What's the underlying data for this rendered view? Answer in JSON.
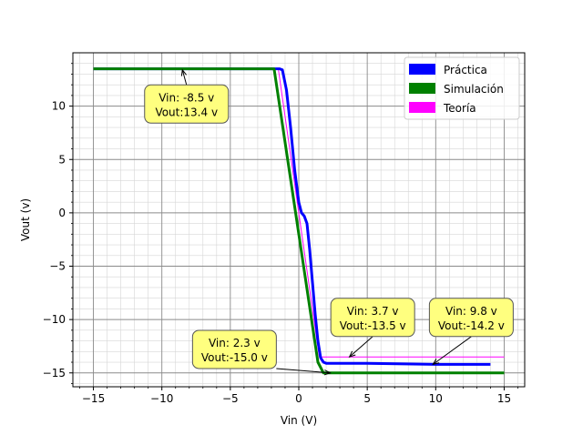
{
  "chart_data": {
    "type": "line",
    "title": "",
    "xlabel": "Vin (V)",
    "ylabel": "Vout (v)",
    "xlim": [
      -16.5,
      16.5
    ],
    "ylim": [
      -16.3,
      15.0
    ],
    "major_x_ticks": [
      -15,
      -10,
      -5,
      0,
      5,
      10,
      15
    ],
    "major_x_tick_labels": [
      "−15",
      "−10",
      "−5",
      "0",
      "5",
      "10",
      "15"
    ],
    "major_y_ticks": [
      -15,
      -10,
      -5,
      0,
      5,
      10
    ],
    "major_y_tick_labels": [
      "−15",
      "−10",
      "−5",
      "0",
      "5",
      "10"
    ],
    "grid": "major and minor",
    "legend_position": "top-right",
    "series": [
      {
        "name": "Práctica",
        "color": "#0000ff",
        "line_width": 3,
        "x": [
          -15,
          -1.4,
          -1.2,
          -0.9,
          -0.6,
          -0.3,
          0.0,
          0.2,
          0.4,
          0.6,
          0.8,
          1.0,
          1.2,
          1.4,
          1.6,
          1.8,
          2.0,
          5.0,
          10.0,
          14.0
        ],
        "y": [
          13.5,
          13.5,
          13.4,
          11.5,
          8.0,
          4.0,
          1.0,
          0.0,
          -0.3,
          -1.0,
          -3.5,
          -6.5,
          -9.5,
          -12.0,
          -13.6,
          -14.0,
          -14.1,
          -14.1,
          -14.2,
          -14.2
        ]
      },
      {
        "name": "Simulación",
        "color": "#008000",
        "line_width": 3,
        "x": [
          -15,
          -1.8,
          1.4,
          1.8,
          15
        ],
        "y": [
          13.5,
          13.5,
          -14.0,
          -15.0,
          -15.0
        ]
      },
      {
        "name": "Teoría",
        "color": "#ff00ff",
        "line_width": 1,
        "x": [
          -15,
          -1.5,
          1.5,
          15
        ],
        "y": [
          13.5,
          13.5,
          -13.5,
          -13.5
        ]
      }
    ],
    "annotations": [
      {
        "text": "Vin: -8.5 v\nVout:13.4 v",
        "point": [
          -8.5,
          13.4
        ],
        "text_pos": [
          -8.2,
          10.2
        ]
      },
      {
        "text": "Vin: 3.7 v\nVout:-13.5 v",
        "point": [
          3.7,
          -13.5
        ],
        "text_pos": [
          5.4,
          -9.8
        ]
      },
      {
        "text": "Vin: 9.8 v\nVout:-14.2 v",
        "point": [
          9.8,
          -14.2
        ],
        "text_pos": [
          12.6,
          -9.8
        ]
      },
      {
        "text": "Vin: 2.3 v\nVout:-15.0 v",
        "point": [
          2.3,
          -15.0
        ],
        "text_pos": [
          -4.7,
          -12.8
        ]
      }
    ]
  }
}
